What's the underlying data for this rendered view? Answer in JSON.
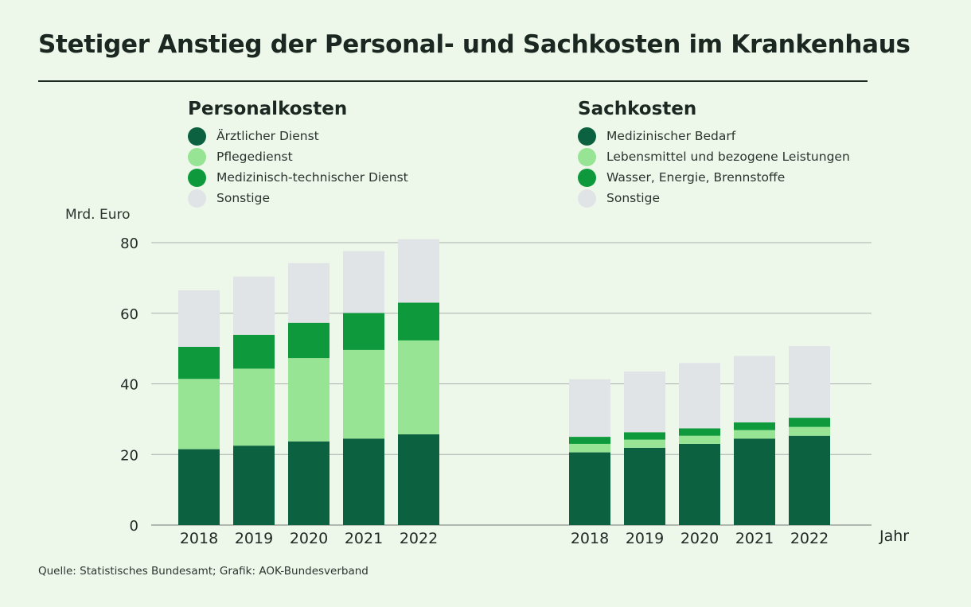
{
  "title": "Stetiger Anstieg der Personal- und Sachkosten im Krankenhaus",
  "unit_label": "Mrd. Euro",
  "x_axis_label": "Jahr",
  "source": "Quelle: Statistisches Bundesamt; Grafik: AOK-Bundesverband",
  "colors": {
    "dark_green": "#0b6140",
    "light_green": "#98e495",
    "mid_green": "#0e9a3c",
    "grey": "#e0e4e6",
    "background": "#eef8ea"
  },
  "legend": {
    "personal": {
      "title": "Personalkosten",
      "items": [
        "Ärztlicher Dienst",
        "Pflegedienst",
        "Medizinisch-technischer Dienst",
        "Sonstige"
      ]
    },
    "sach": {
      "title": "Sachkosten",
      "items": [
        "Medizinischer Bedarf",
        "Lebensmittel und bezogene Leistungen",
        "Wasser, Energie, Brennstoffe",
        "Sonstige"
      ]
    }
  },
  "chart_data": [
    {
      "type": "bar",
      "stacked": true,
      "title": "Personalkosten",
      "ylabel": "Mrd. Euro",
      "xlabel": "Jahr",
      "ylim": [
        0,
        80
      ],
      "yticks": [
        0,
        20,
        40,
        60,
        80
      ],
      "categories": [
        "2018",
        "2019",
        "2020",
        "2021",
        "2022"
      ],
      "series": [
        {
          "name": "Ärztlicher Dienst",
          "color": "#0b6140",
          "values": [
            21.5,
            22.5,
            23.7,
            24.5,
            25.7
          ]
        },
        {
          "name": "Pflegedienst",
          "color": "#98e495",
          "values": [
            19.9,
            21.8,
            23.6,
            25.1,
            26.6
          ]
        },
        {
          "name": "Medizinisch-technischer Dienst",
          "color": "#0e9a3c",
          "values": [
            9.1,
            9.6,
            10.0,
            10.5,
            10.7
          ]
        },
        {
          "name": "Sonstige",
          "color": "#e0e4e6",
          "values": [
            16.0,
            16.5,
            16.9,
            17.5,
            18.0
          ]
        }
      ]
    },
    {
      "type": "bar",
      "stacked": true,
      "title": "Sachkosten",
      "ylabel": "Mrd. Euro",
      "xlabel": "Jahr",
      "ylim": [
        0,
        80
      ],
      "yticks": [
        0,
        20,
        40,
        60,
        80
      ],
      "categories": [
        "2018",
        "2019",
        "2020",
        "2021",
        "2022"
      ],
      "series": [
        {
          "name": "Medizinischer Bedarf",
          "color": "#0b6140",
          "values": [
            20.6,
            21.9,
            23.0,
            24.5,
            25.3
          ]
        },
        {
          "name": "Lebensmittel und bezogene Leistungen",
          "color": "#98e495",
          "values": [
            2.4,
            2.3,
            2.3,
            2.4,
            2.5
          ]
        },
        {
          "name": "Wasser, Energie, Brennstoffe",
          "color": "#0e9a3c",
          "values": [
            2.0,
            2.1,
            2.1,
            2.2,
            2.6
          ]
        },
        {
          "name": "Sonstige",
          "color": "#e0e4e6",
          "values": [
            16.3,
            17.2,
            18.5,
            18.8,
            20.3
          ]
        }
      ]
    }
  ]
}
